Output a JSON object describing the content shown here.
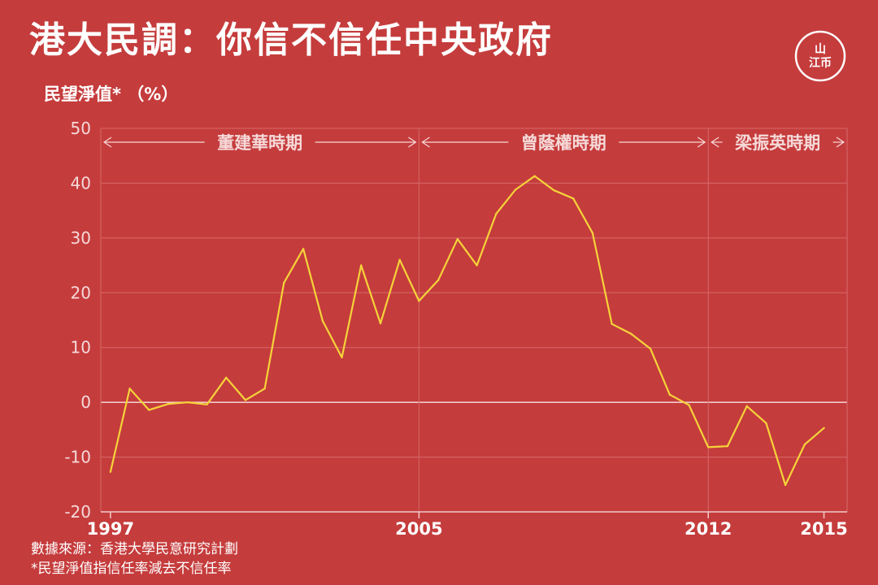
{
  "header": {
    "title": "港大民調：你信不信任中央政府",
    "ylabel": "民望淨值*  （%）"
  },
  "logo": {
    "name": "initium-logo",
    "text_top": "山",
    "text_bottom": "江币"
  },
  "footer": {
    "source": "數據來源：香港大學民意研究計劃",
    "note": "*民望淨值指信任率減去不信任率"
  },
  "colors": {
    "background": "#c53c3c",
    "line": "#f5d33a",
    "grid": "#d66a6a",
    "text": "#ffffff"
  },
  "chart_data": {
    "type": "line",
    "title": "港大民調：你信不信任中央政府",
    "ylabel": "民望淨值*  （%）",
    "xlabel": "",
    "ylim": [
      -20,
      50
    ],
    "yticks": [
      50,
      40,
      30,
      20,
      10,
      0,
      -10,
      -20
    ],
    "xlim": [
      1996.75,
      2016.1
    ],
    "xticks": [
      {
        "label": "1997",
        "value": 1997.0
      },
      {
        "label": "2005",
        "value": 2005.0
      },
      {
        "label": "2012",
        "value": 2012.5
      },
      {
        "label": "2015",
        "value": 2015.5
      }
    ],
    "grid": true,
    "series": [
      {
        "x": [
          1997.0,
          1997.5,
          1998.0,
          1998.5,
          1999.0,
          1999.5,
          2000.0,
          2000.5,
          2001.0,
          2001.5,
          2002.0,
          2002.5,
          2003.0,
          2003.5,
          2004.0,
          2004.5,
          2005.0,
          2005.5,
          2006.0,
          2006.5,
          2007.0,
          2007.5,
          2008.0,
          2008.5,
          2009.0,
          2009.5,
          2010.0,
          2010.5,
          2011.0,
          2011.5,
          2012.0,
          2012.5,
          2013.0,
          2013.5,
          2014.0,
          2014.5,
          2015.0,
          2015.5
        ],
        "values": [
          -12.7,
          2.5,
          -1.4,
          -0.3,
          0.0,
          -0.4,
          4.5,
          0.4,
          2.5,
          21.8,
          28.0,
          14.9,
          8.2,
          25.0,
          14.4,
          26.0,
          18.5,
          22.3,
          29.8,
          25.0,
          34.4,
          38.8,
          41.3,
          38.7,
          37.2,
          30.9,
          14.3,
          12.5,
          9.8,
          1.4,
          -0.5,
          -8.2,
          -8.0,
          -0.7,
          -3.8,
          -15.1,
          -7.7,
          -4.7
        ]
      }
    ],
    "annotations": [
      {
        "label": "董建華時期",
        "start": 1996.75,
        "end": 2005.0
      },
      {
        "label": "曾蔭權時期",
        "start": 2005.0,
        "end": 2012.5
      },
      {
        "label": "梁振英時期",
        "start": 2012.5,
        "end": 2016.1
      }
    ]
  }
}
